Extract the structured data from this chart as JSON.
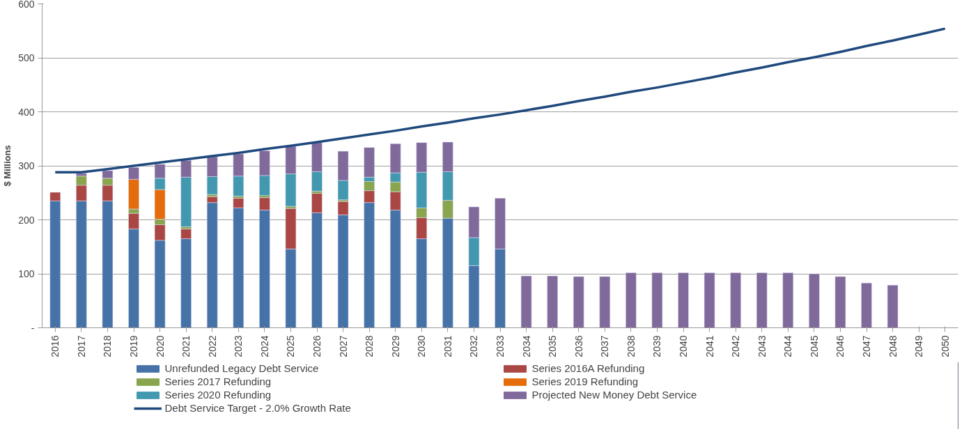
{
  "chart_data": {
    "type": "bar",
    "stacked": true,
    "ylabel": "$ Millions",
    "categories": [
      "2016",
      "2017",
      "2018",
      "2019",
      "2020",
      "2021",
      "2022",
      "2023",
      "2024",
      "2025",
      "2026",
      "2027",
      "2028",
      "2029",
      "2030",
      "2031",
      "2032",
      "2033",
      "2034",
      "2035",
      "2036",
      "2037",
      "2038",
      "2039",
      "2040",
      "2041",
      "2042",
      "2043",
      "2044",
      "2045",
      "2046",
      "2047",
      "2048",
      "2049",
      "2050"
    ],
    "series": [
      {
        "name": "Unrefunded Legacy Debt Service",
        "color": "#4572a7",
        "values": [
          235,
          235,
          235,
          183,
          162,
          165,
          232,
          222,
          218,
          146,
          213,
          209,
          232,
          218,
          165,
          203,
          115,
          146,
          null,
          null,
          null,
          null,
          null,
          null,
          null,
          null,
          null,
          null,
          null,
          null,
          null,
          null,
          null,
          null,
          null
        ]
      },
      {
        "name": "Series 2016A Refunding",
        "color": "#aa4643",
        "values": [
          16,
          29,
          29,
          29,
          29,
          18,
          11,
          18,
          23,
          75,
          36,
          25,
          22,
          34,
          39,
          null,
          null,
          null,
          null,
          null,
          null,
          null,
          null,
          null,
          null,
          null,
          null,
          null,
          null,
          null,
          null,
          null,
          null,
          null,
          null
        ]
      },
      {
        "name": "Series 2017 Refunding",
        "color": "#89a54e",
        "values": [
          null,
          17,
          13,
          8,
          10,
          4,
          4,
          4,
          4,
          4,
          4,
          3,
          17,
          18,
          18,
          33,
          null,
          null,
          null,
          null,
          null,
          null,
          null,
          null,
          null,
          null,
          null,
          null,
          null,
          null,
          null,
          null,
          null,
          null,
          null
        ]
      },
      {
        "name": "Series 2019 Refunding",
        "color": "#e46c0a",
        "values": [
          null,
          null,
          null,
          55,
          55,
          null,
          null,
          null,
          null,
          null,
          null,
          null,
          null,
          null,
          null,
          null,
          null,
          null,
          null,
          null,
          null,
          null,
          null,
          null,
          null,
          null,
          null,
          null,
          null,
          null,
          null,
          null,
          null,
          null,
          null
        ]
      },
      {
        "name": "Series 2020 Refunding",
        "color": "#4198af",
        "values": [
          null,
          null,
          null,
          null,
          21,
          92,
          33,
          37,
          37,
          60,
          36,
          36,
          8,
          17,
          66,
          53,
          52,
          null,
          null,
          null,
          null,
          null,
          null,
          null,
          null,
          null,
          null,
          null,
          null,
          null,
          null,
          null,
          null,
          null,
          null
        ]
      },
      {
        "name": "Projected New Money Debt Service",
        "color": "#80699b",
        "values": [
          null,
          5,
          14,
          22,
          26,
          31,
          37,
          41,
          46,
          51,
          54,
          54,
          55,
          54,
          55,
          55,
          57,
          94,
          96,
          96,
          95,
          95,
          102,
          102,
          102,
          102,
          102,
          102,
          102,
          100,
          95,
          83,
          79,
          null,
          null
        ]
      },
      {
        "name": "Debt Service Target - 2.0% Growth Rate",
        "type": "line",
        "color": "#1f497d",
        "values": [
          288,
          288,
          294,
          300,
          306,
          312,
          318,
          324,
          331,
          337,
          344,
          351,
          358,
          365,
          373,
          380,
          388,
          395,
          403,
          411,
          420,
          428,
          437,
          445,
          454,
          463,
          473,
          482,
          492,
          501,
          511,
          522,
          532,
          543,
          554
        ]
      }
    ],
    "ylim": [
      0,
      600
    ],
    "yticks": [
      {
        "value": 0,
        "label": "-"
      },
      100,
      200,
      300,
      400,
      500,
      600
    ],
    "grid": "y",
    "legend": "bottom"
  }
}
